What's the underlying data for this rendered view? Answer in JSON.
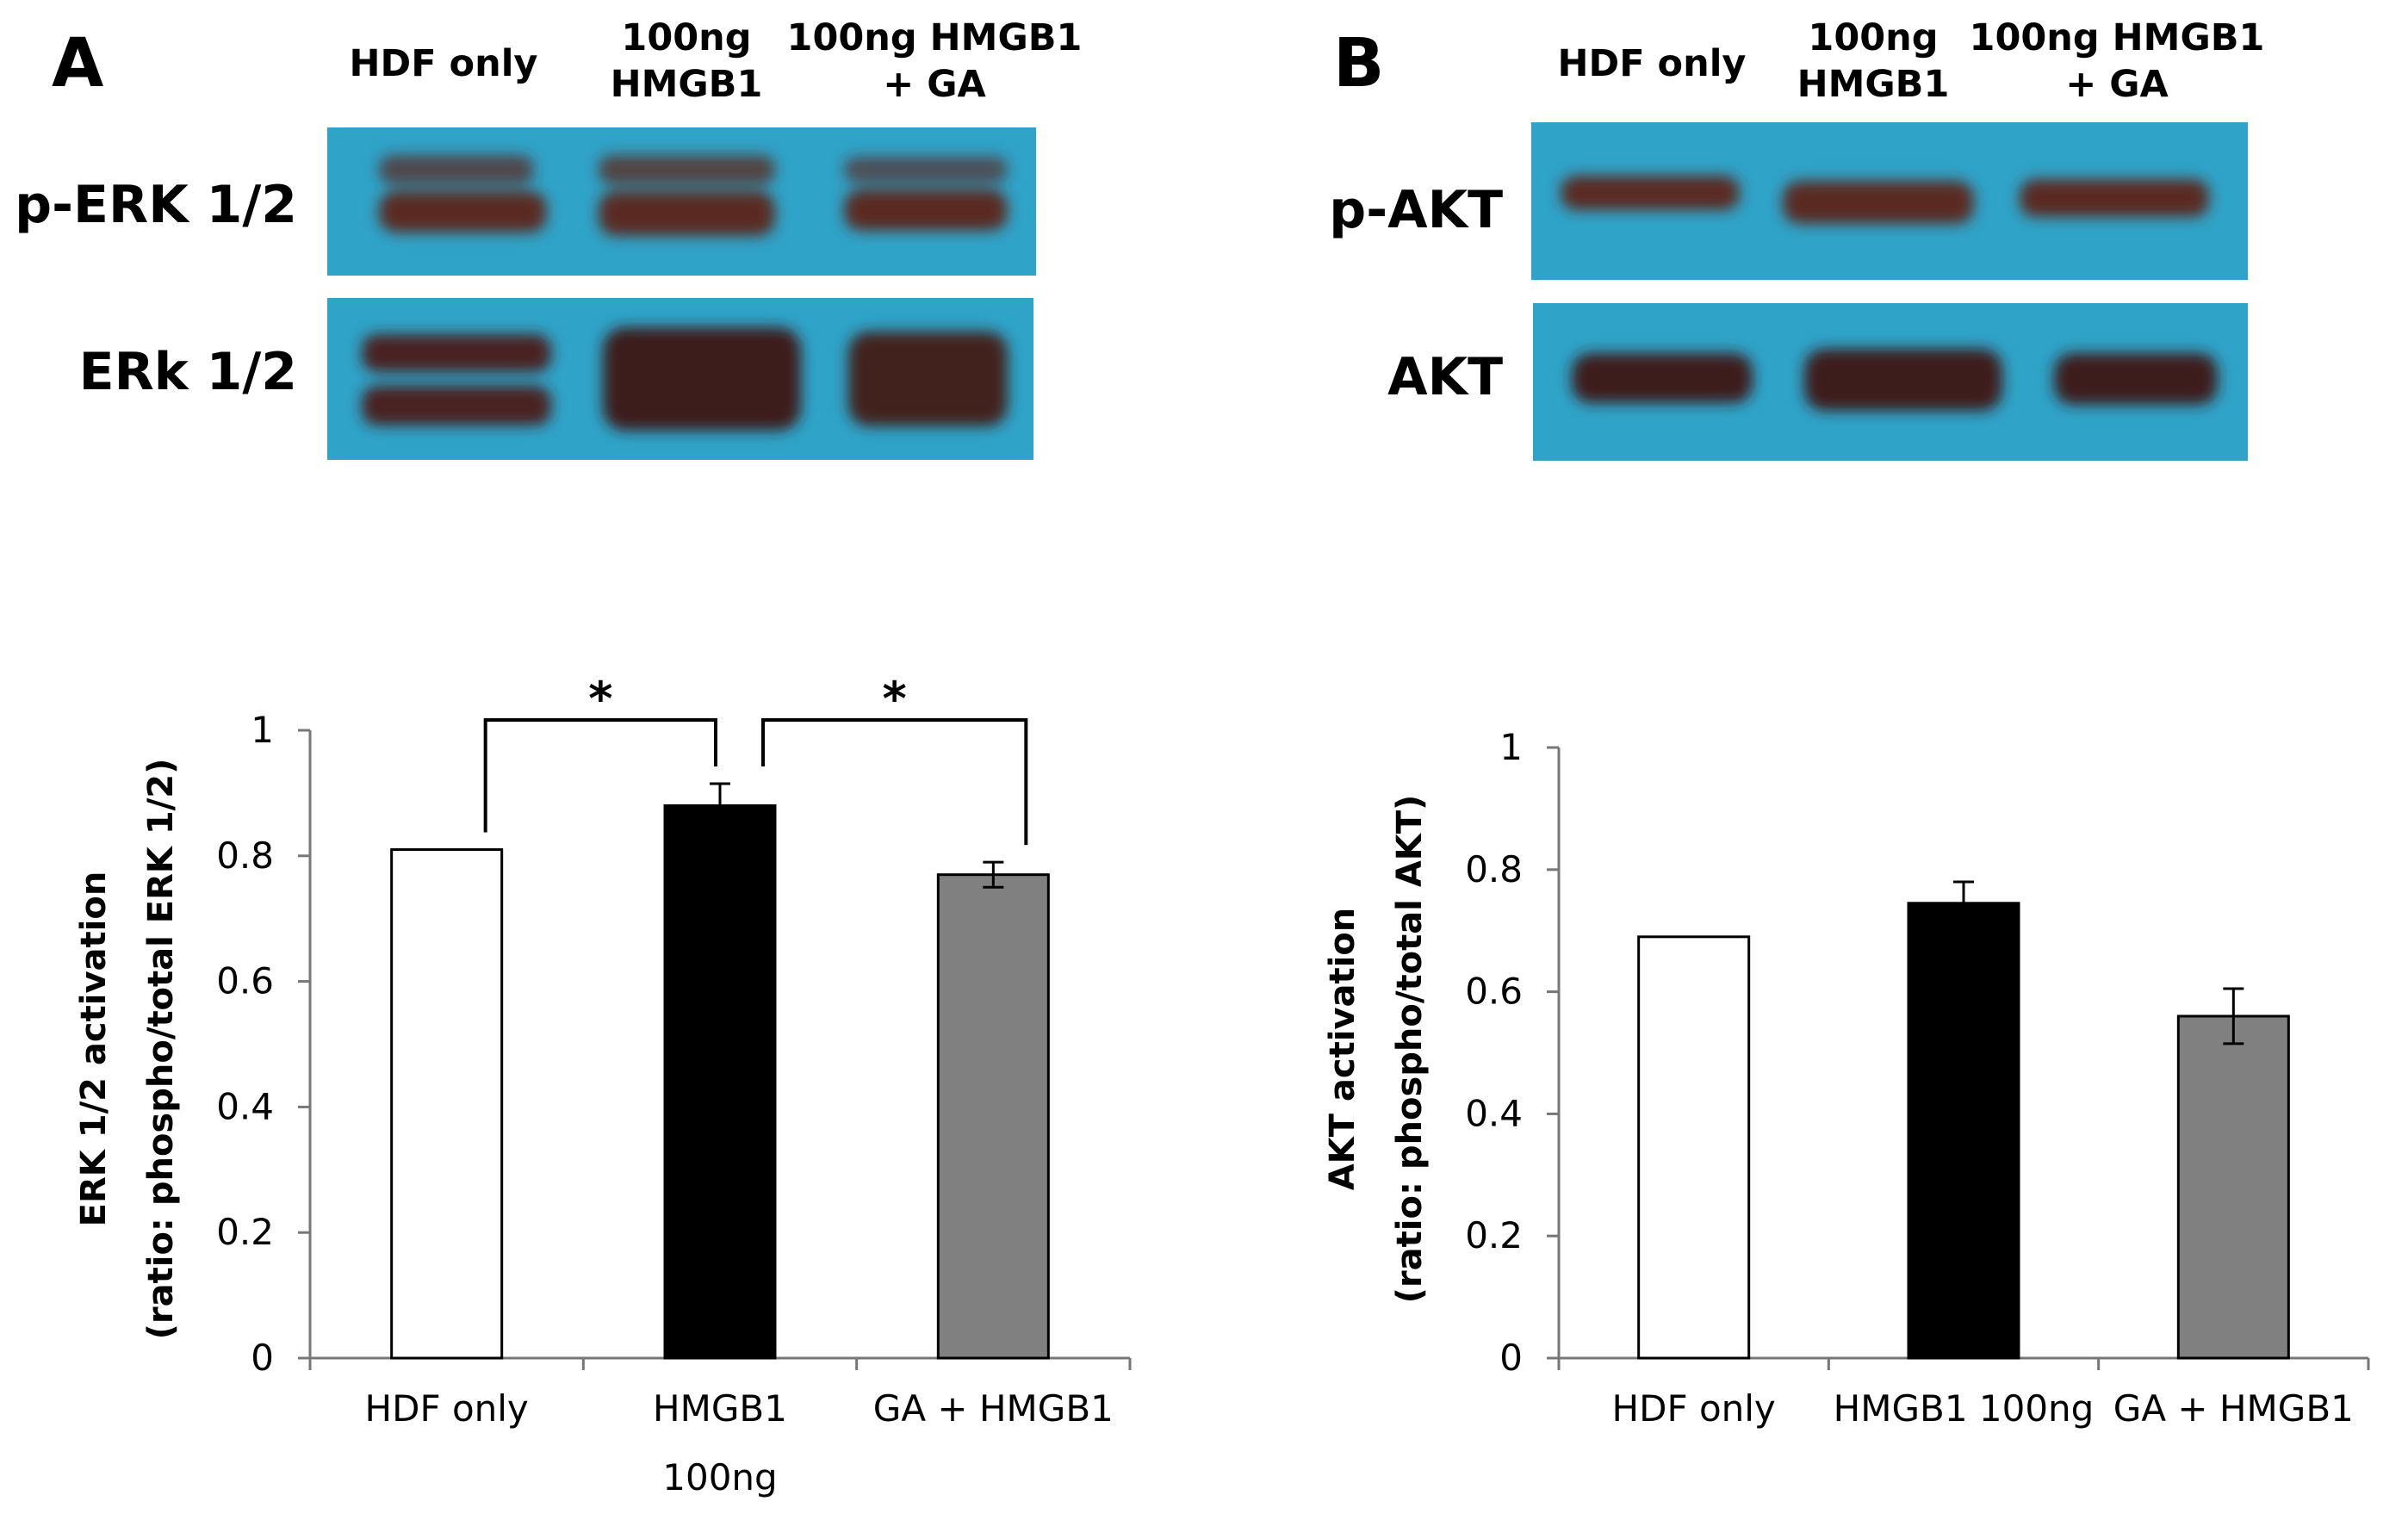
{
  "panels": [
    {
      "letter": "A",
      "lanes": [
        [
          "HDF only"
        ],
        [
          "100ng",
          "HMGB1"
        ],
        [
          "100ng HMGB1",
          "+ GA"
        ]
      ],
      "blots": [
        {
          "label": "p-ERK 1/2",
          "band_style": "double"
        },
        {
          "label": "ERk 1/2",
          "band_style": "double-dark"
        }
      ]
    },
    {
      "letter": "B",
      "lanes": [
        [
          "HDF only"
        ],
        [
          "100ng",
          "HMGB1"
        ],
        [
          "100ng HMGB1",
          "+ GA"
        ]
      ],
      "blots": [
        {
          "label": "p-AKT",
          "band_style": "single"
        },
        {
          "label": "AKT",
          "band_style": "single-dark"
        }
      ]
    }
  ],
  "colors": {
    "blot_background": "#2fa3c8",
    "band": "#5a2a22",
    "bar_hdf": "#ffffff",
    "bar_hmgb1": "#000000",
    "bar_ga": "#808080"
  },
  "chart_data": [
    {
      "type": "bar",
      "categories": [
        [
          "HDF only"
        ],
        [
          "HMGB1",
          "100ng"
        ],
        [
          "GA  +  HMGB1"
        ]
      ],
      "values": [
        0.81,
        0.88,
        0.77
      ],
      "errors": [
        0,
        0.035,
        0.02
      ],
      "ylabel": [
        "ERK 1/2 activation",
        "(ratio: phospho/total ERK 1/2)"
      ],
      "ylim": [
        0,
        1
      ],
      "yticks": [
        "0",
        "0.2",
        "0.4",
        "0.6",
        "0.8",
        "1"
      ],
      "significance": [
        {
          "from": 0,
          "to": 1,
          "label": "*"
        },
        {
          "from": 1,
          "to": 2,
          "label": "*"
        }
      ],
      "grid": false
    },
    {
      "type": "bar",
      "categories": [
        [
          "HDF only"
        ],
        [
          "HMGB1 100ng"
        ],
        [
          "GA  +  HMGB1"
        ]
      ],
      "values": [
        0.69,
        0.745,
        0.56
      ],
      "errors": [
        0,
        0.035,
        0.045
      ],
      "ylabel": [
        "AKT activation",
        "(ratio: phospho/total AKT)"
      ],
      "ylim": [
        0,
        1
      ],
      "yticks": [
        "0",
        "0.2",
        "0.4",
        "0.6",
        "0.8",
        "1"
      ],
      "significance": [],
      "grid": false
    }
  ]
}
